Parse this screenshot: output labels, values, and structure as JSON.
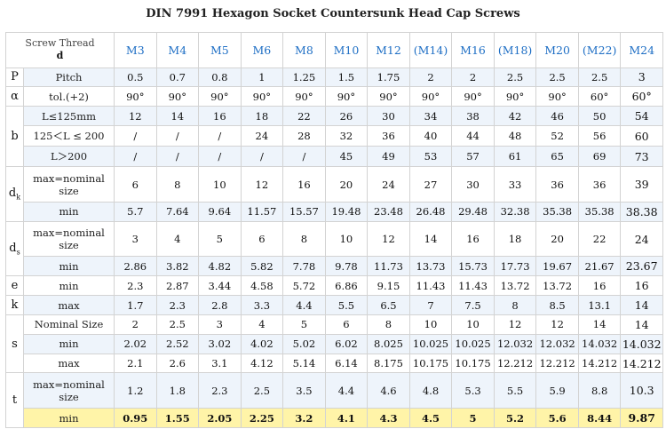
{
  "title": "DIN 7991 Hexagon Socket Countersunk Head Cap Screws",
  "header": {
    "corner_line1": "Screw Thread",
    "corner_line2": "d",
    "sizes": [
      "M3",
      "M4",
      "M5",
      "M6",
      "M8",
      "M10",
      "M12",
      "(M14)",
      "M16",
      "(M18)",
      "M20",
      "(M22)",
      "M24"
    ]
  },
  "rows": [
    {
      "param": "Pitch",
      "values": [
        "0.5",
        "0.7",
        "0.8",
        "1",
        "1.25",
        "1.5",
        "1.75",
        "2",
        "2",
        "2.5",
        "2.5",
        "2.5",
        "3"
      ]
    },
    {
      "param": "tol.(+2)",
      "values": [
        "90°",
        "90°",
        "90°",
        "90°",
        "90°",
        "90°",
        "90°",
        "90°",
        "90°",
        "90°",
        "90°",
        "60°",
        "60°"
      ]
    },
    {
      "param": "L≤125mm",
      "values": [
        "12",
        "14",
        "16",
        "18",
        "22",
        "26",
        "30",
        "34",
        "38",
        "42",
        "46",
        "50",
        "54"
      ]
    },
    {
      "param": "125＜L ≤ 200",
      "values": [
        "/",
        "/",
        "/",
        "24",
        "28",
        "32",
        "36",
        "40",
        "44",
        "48",
        "52",
        "56",
        "60"
      ]
    },
    {
      "param": "L＞200",
      "values": [
        "/",
        "/",
        "/",
        "/",
        "/",
        "45",
        "49",
        "53",
        "57",
        "61",
        "65",
        "69",
        "73"
      ]
    },
    {
      "param": "max=nominal size",
      "values": [
        "6",
        "8",
        "10",
        "12",
        "16",
        "20",
        "24",
        "27",
        "30",
        "33",
        "36",
        "36",
        "39"
      ]
    },
    {
      "param": "min",
      "values": [
        "5.7",
        "7.64",
        "9.64",
        "11.57",
        "15.57",
        "19.48",
        "23.48",
        "26.48",
        "29.48",
        "32.38",
        "35.38",
        "35.38",
        "38.38"
      ]
    },
    {
      "param": "max=nominal size",
      "values": [
        "3",
        "4",
        "5",
        "6",
        "8",
        "10",
        "12",
        "14",
        "16",
        "18",
        "20",
        "22",
        "24"
      ]
    },
    {
      "param": "min",
      "values": [
        "2.86",
        "3.82",
        "4.82",
        "5.82",
        "7.78",
        "9.78",
        "11.73",
        "13.73",
        "15.73",
        "17.73",
        "19.67",
        "21.67",
        "23.67"
      ]
    },
    {
      "param": "min",
      "values": [
        "2.3",
        "2.87",
        "3.44",
        "4.58",
        "5.72",
        "6.86",
        "9.15",
        "11.43",
        "11.43",
        "13.72",
        "13.72",
        "16",
        "16"
      ]
    },
    {
      "param": "max",
      "values": [
        "1.7",
        "2.3",
        "2.8",
        "3.3",
        "4.4",
        "5.5",
        "6.5",
        "7",
        "7.5",
        "8",
        "8.5",
        "13.1",
        "14"
      ]
    },
    {
      "param": "Nominal Size",
      "values": [
        "2",
        "2.5",
        "3",
        "4",
        "5",
        "6",
        "8",
        "10",
        "10",
        "12",
        "12",
        "14",
        "14"
      ]
    },
    {
      "param": "min",
      "values": [
        "2.02",
        "2.52",
        "3.02",
        "4.02",
        "5.02",
        "6.02",
        "8.025",
        "10.025",
        "10.025",
        "12.032",
        "12.032",
        "14.032",
        "14.032"
      ]
    },
    {
      "param": "max",
      "values": [
        "2.1",
        "2.6",
        "3.1",
        "4.12",
        "5.14",
        "6.14",
        "8.175",
        "10.175",
        "10.175",
        "12.212",
        "12.212",
        "14.212",
        "14.212"
      ]
    },
    {
      "param": "max=nominal size",
      "values": [
        "1.2",
        "1.8",
        "2.3",
        "2.5",
        "3.5",
        "4.4",
        "4.6",
        "4.8",
        "5.3",
        "5.5",
        "5.9",
        "8.8",
        "10.3"
      ]
    },
    {
      "param": "min",
      "values": [
        "0.95",
        "1.55",
        "2.05",
        "2.25",
        "3.2",
        "4.1",
        "4.3",
        "4.5",
        "5",
        "5.2",
        "5.6",
        "8.44",
        "9.87"
      ]
    }
  ],
  "symbols": {
    "P": "P",
    "alpha": "α",
    "b": "b",
    "dk": "d",
    "dk_sub": "k",
    "ds": "d",
    "ds_sub": "s",
    "e": "e",
    "k": "k",
    "s": "s",
    "t": "t"
  },
  "colors": {
    "header_blue": "#1f6fc5",
    "row_shade": "#eef4fb",
    "highlight": "#fff4a8",
    "grid": "#d3d3d3"
  }
}
